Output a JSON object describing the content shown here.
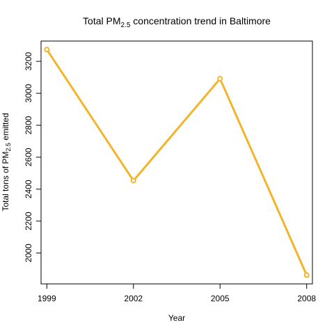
{
  "chart_data": {
    "type": "line",
    "title": {
      "prefix": "Total PM",
      "subscript": "2.5",
      "suffix": " concentration trend in Baltimore"
    },
    "xlabel": "Year",
    "ylabel": {
      "prefix": "Total tons of PM",
      "subscript": "2.5",
      "suffix": " emitted"
    },
    "x": [
      1999,
      2002,
      2005,
      2008
    ],
    "series": [
      {
        "values": [
          3274,
          2453,
          3091,
          1862
        ],
        "color": "#f4b42a"
      }
    ],
    "xticks": [
      "1999",
      "2002",
      "2005",
      "2008"
    ],
    "yticks": [
      2000,
      2200,
      2400,
      2600,
      2800,
      3000,
      3200
    ],
    "xlim": [
      1998.8,
      2008.2
    ],
    "ylim": [
      1807,
      3327
    ],
    "grid": false,
    "legend": "none",
    "markers": "open-circle"
  }
}
